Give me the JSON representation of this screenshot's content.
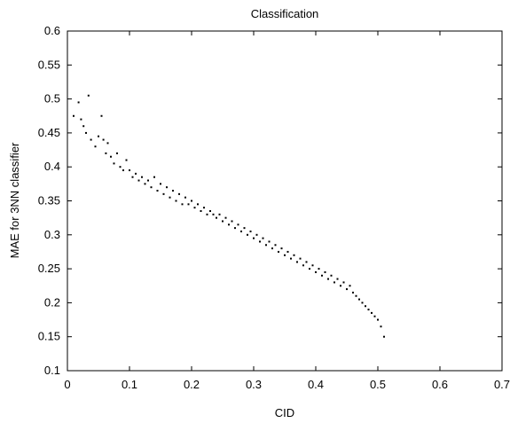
{
  "chart_data": {
    "type": "scatter",
    "title": "Classification",
    "xlabel": "CID",
    "ylabel": "MAE for 3NN classifier",
    "xlim": [
      0,
      0.7
    ],
    "ylim": [
      0.1,
      0.6
    ],
    "xticks": [
      "0",
      "0.1",
      "0.2",
      "0.3",
      "0.4",
      "0.5",
      "0.6",
      "0.7"
    ],
    "yticks": [
      "0.1",
      "0.15",
      "0.2",
      "0.25",
      "0.3",
      "0.35",
      "0.4",
      "0.45",
      "0.5",
      "0.55",
      "0.6"
    ],
    "grid": false,
    "legend": "none",
    "marker_color": "#000000",
    "series": [
      {
        "x": [
          0.01,
          0.018,
          0.022,
          0.026,
          0.03,
          0.034,
          0.038,
          0.045,
          0.05,
          0.055,
          0.058,
          0.062,
          0.065,
          0.07,
          0.075,
          0.08,
          0.085,
          0.09,
          0.095,
          0.1,
          0.105,
          0.11,
          0.115,
          0.12,
          0.125,
          0.13,
          0.135,
          0.14,
          0.145,
          0.15,
          0.155,
          0.16,
          0.165,
          0.17,
          0.175,
          0.18,
          0.185,
          0.19,
          0.195,
          0.2,
          0.205,
          0.21,
          0.215,
          0.22,
          0.225,
          0.23,
          0.235,
          0.24,
          0.245,
          0.25,
          0.255,
          0.26,
          0.265,
          0.27,
          0.275,
          0.28,
          0.285,
          0.29,
          0.295,
          0.3,
          0.305,
          0.31,
          0.315,
          0.32,
          0.325,
          0.33,
          0.335,
          0.34,
          0.345,
          0.35,
          0.355,
          0.36,
          0.365,
          0.37,
          0.375,
          0.38,
          0.385,
          0.39,
          0.395,
          0.4,
          0.405,
          0.41,
          0.415,
          0.42,
          0.425,
          0.43,
          0.435,
          0.44,
          0.445,
          0.45,
          0.455,
          0.46,
          0.465,
          0.47,
          0.475,
          0.48,
          0.485,
          0.49,
          0.495,
          0.5,
          0.505,
          0.51
        ],
        "y": [
          0.475,
          0.495,
          0.47,
          0.46,
          0.45,
          0.505,
          0.44,
          0.43,
          0.445,
          0.475,
          0.44,
          0.42,
          0.435,
          0.415,
          0.405,
          0.42,
          0.4,
          0.395,
          0.41,
          0.395,
          0.385,
          0.39,
          0.38,
          0.385,
          0.375,
          0.38,
          0.37,
          0.385,
          0.365,
          0.375,
          0.36,
          0.37,
          0.355,
          0.365,
          0.35,
          0.36,
          0.345,
          0.355,
          0.345,
          0.35,
          0.34,
          0.345,
          0.335,
          0.34,
          0.33,
          0.335,
          0.33,
          0.325,
          0.33,
          0.32,
          0.325,
          0.315,
          0.32,
          0.31,
          0.315,
          0.305,
          0.31,
          0.3,
          0.305,
          0.295,
          0.3,
          0.29,
          0.295,
          0.285,
          0.29,
          0.28,
          0.285,
          0.275,
          0.28,
          0.27,
          0.275,
          0.265,
          0.27,
          0.26,
          0.265,
          0.255,
          0.26,
          0.25,
          0.255,
          0.245,
          0.25,
          0.24,
          0.245,
          0.235,
          0.24,
          0.23,
          0.235,
          0.225,
          0.23,
          0.22,
          0.225,
          0.215,
          0.21,
          0.205,
          0.2,
          0.195,
          0.19,
          0.185,
          0.18,
          0.175,
          0.165,
          0.15
        ]
      }
    ]
  }
}
